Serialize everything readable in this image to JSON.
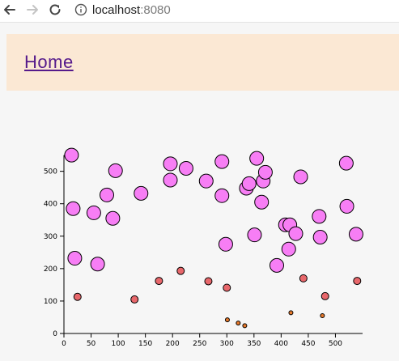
{
  "browser": {
    "url_host": "localhost",
    "url_port": ":8080"
  },
  "header": {
    "home_label": "Home"
  },
  "chart_data": {
    "type": "scatter",
    "title": "",
    "xlabel": "",
    "ylabel": "",
    "xlim": [
      0,
      550
    ],
    "ylim": [
      0,
      550
    ],
    "x_ticks": [
      0,
      50,
      100,
      150,
      200,
      250,
      300,
      350,
      400,
      450,
      500
    ],
    "y_ticks": [
      0,
      100,
      200,
      300,
      400,
      500
    ],
    "colors": {
      "large": "#f77ef5",
      "medium": "#e8676b",
      "small": "#e4782b"
    },
    "points": [
      {
        "x": 14,
        "y": 550,
        "size": "large"
      },
      {
        "x": 17,
        "y": 385,
        "size": "large"
      },
      {
        "x": 20,
        "y": 232,
        "size": "large"
      },
      {
        "x": 25,
        "y": 113,
        "size": "medium"
      },
      {
        "x": 55,
        "y": 372,
        "size": "large"
      },
      {
        "x": 62,
        "y": 214,
        "size": "large"
      },
      {
        "x": 79,
        "y": 427,
        "size": "large"
      },
      {
        "x": 90,
        "y": 355,
        "size": "large"
      },
      {
        "x": 95,
        "y": 502,
        "size": "large"
      },
      {
        "x": 130,
        "y": 105,
        "size": "medium"
      },
      {
        "x": 142,
        "y": 432,
        "size": "large"
      },
      {
        "x": 175,
        "y": 162,
        "size": "medium"
      },
      {
        "x": 196,
        "y": 523,
        "size": "large"
      },
      {
        "x": 196,
        "y": 473,
        "size": "large"
      },
      {
        "x": 215,
        "y": 193,
        "size": "medium"
      },
      {
        "x": 225,
        "y": 509,
        "size": "large"
      },
      {
        "x": 262,
        "y": 470,
        "size": "large"
      },
      {
        "x": 266,
        "y": 161,
        "size": "medium"
      },
      {
        "x": 291,
        "y": 530,
        "size": "large"
      },
      {
        "x": 291,
        "y": 425,
        "size": "large"
      },
      {
        "x": 298,
        "y": 275,
        "size": "large"
      },
      {
        "x": 300,
        "y": 141,
        "size": "medium"
      },
      {
        "x": 301,
        "y": 42,
        "size": "small"
      },
      {
        "x": 321,
        "y": 32,
        "size": "small"
      },
      {
        "x": 333,
        "y": 24,
        "size": "small"
      },
      {
        "x": 336,
        "y": 448,
        "size": "large"
      },
      {
        "x": 341,
        "y": 462,
        "size": "large"
      },
      {
        "x": 351,
        "y": 304,
        "size": "large"
      },
      {
        "x": 355,
        "y": 540,
        "size": "large"
      },
      {
        "x": 364,
        "y": 405,
        "size": "large"
      },
      {
        "x": 367,
        "y": 470,
        "size": "large"
      },
      {
        "x": 371,
        "y": 497,
        "size": "large"
      },
      {
        "x": 392,
        "y": 210,
        "size": "large"
      },
      {
        "x": 408,
        "y": 335,
        "size": "large"
      },
      {
        "x": 414,
        "y": 260,
        "size": "large"
      },
      {
        "x": 416,
        "y": 335,
        "size": "large"
      },
      {
        "x": 418,
        "y": 64,
        "size": "small"
      },
      {
        "x": 427,
        "y": 308,
        "size": "large"
      },
      {
        "x": 436,
        "y": 483,
        "size": "large"
      },
      {
        "x": 441,
        "y": 170,
        "size": "medium"
      },
      {
        "x": 470,
        "y": 361,
        "size": "large"
      },
      {
        "x": 472,
        "y": 297,
        "size": "large"
      },
      {
        "x": 476,
        "y": 55,
        "size": "small"
      },
      {
        "x": 481,
        "y": 115,
        "size": "medium"
      },
      {
        "x": 520,
        "y": 525,
        "size": "large"
      },
      {
        "x": 521,
        "y": 392,
        "size": "large"
      },
      {
        "x": 538,
        "y": 306,
        "size": "large"
      },
      {
        "x": 540,
        "y": 162,
        "size": "medium"
      }
    ]
  }
}
